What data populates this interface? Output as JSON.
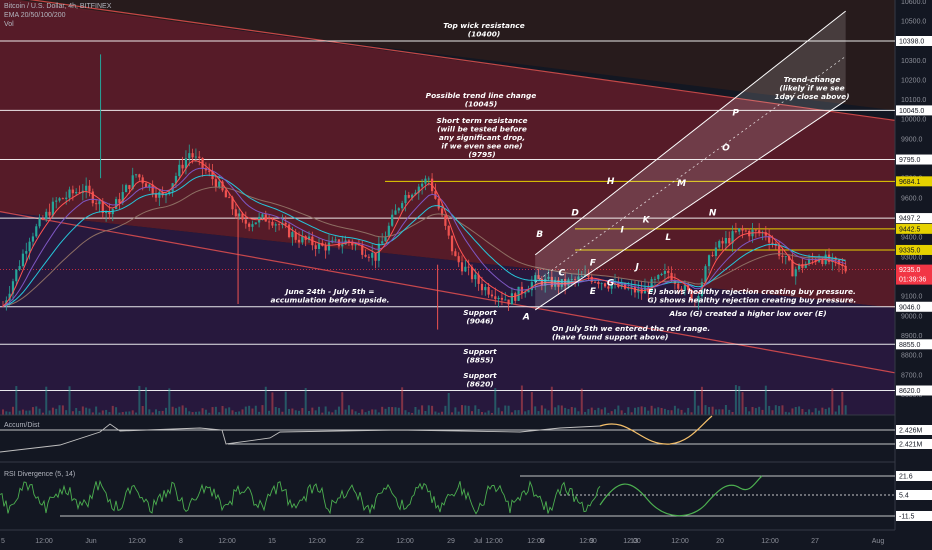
{
  "header": {
    "symbol": "Bitcoin / U.S. Dollar, 4h, BITFINEX",
    "indicators": "EMA 20/50/100/200",
    "volume": "Vol"
  },
  "panes": {
    "accum_title": "Accum/Dist",
    "rsi_title": "RSI Divergence (5, 14)"
  },
  "colors": {
    "background": "#131722",
    "up": "#26a69a",
    "down": "#ef5350",
    "resistance_line": "#ffffff",
    "yellow_line": "#e6d200",
    "red_zone": "#6e1d2b",
    "purple_zone": "#2a1840",
    "ema20": "#ff5252",
    "ema50": "#7e57c2",
    "ema100": "#26c6da",
    "ema200": "#8d6e63",
    "channel": "#ffffff",
    "price_tag": "#f23645"
  },
  "chart_data": {
    "type": "line",
    "title": "Bitcoin / U.S. Dollar, 4h, BITFINEX",
    "xlabel": "",
    "ylabel": "",
    "x_ticks": [
      "5",
      "12:00",
      "Jun",
      "12:00",
      "8",
      "12:00",
      "15",
      "12:00",
      "22",
      "12:00",
      "29",
      "12:00",
      "Jul",
      "12:00",
      "6",
      "12:00",
      "9",
      "12:00",
      "13",
      "12:00",
      "20",
      "12:00",
      "27",
      "Aug"
    ],
    "y_ticks": [
      8600,
      8700,
      8800,
      8900,
      9000,
      9100,
      9200,
      9300,
      9400,
      9500,
      9600,
      9700,
      9800,
      9900,
      10000,
      10100,
      10200,
      10300,
      10400,
      10500,
      10600
    ],
    "ylim": [
      8550,
      10620
    ],
    "series": [
      {
        "name": "Price",
        "x": [
          0,
          3,
          6,
          9,
          12,
          15,
          18,
          21,
          24,
          27,
          30,
          33,
          36,
          39,
          42,
          45,
          48,
          51,
          54,
          57,
          60,
          63,
          66,
          69,
          72,
          75,
          78,
          80,
          83,
          86,
          89,
          92,
          95
        ],
        "values": [
          9050,
          9400,
          9580,
          9650,
          9520,
          9720,
          9600,
          9830,
          9680,
          9470,
          9500,
          9400,
          9350,
          9380,
          9300,
          9600,
          9700,
          9290,
          9150,
          9080,
          9180,
          9160,
          9200,
          9150,
          9120,
          9220,
          9080,
          9330,
          9430,
          9420,
          9230,
          9300,
          9235
        ]
      }
    ],
    "horizontal_levels": [
      {
        "value": 10398.0,
        "label": "10398.0",
        "style": "white"
      },
      {
        "value": 10045.0,
        "label": "10045.0",
        "style": "white"
      },
      {
        "value": 9795.0,
        "label": "9795.0",
        "style": "white"
      },
      {
        "value": 9684.1,
        "label": "9684.1",
        "style": "yellow"
      },
      {
        "value": 9497.2,
        "label": "9497.2",
        "style": "white"
      },
      {
        "value": 9442.5,
        "label": "9442.5",
        "style": "yellow"
      },
      {
        "value": 9335.0,
        "label": "9335.0",
        "style": "yellow"
      },
      {
        "value": 9046.0,
        "label": "9046.0",
        "style": "white"
      },
      {
        "value": 8855.0,
        "label": "8855.0",
        "style": "white"
      },
      {
        "value": 8620.0,
        "label": "8620.0",
        "style": "white"
      }
    ],
    "current_price": {
      "value": 9235.0,
      "label": "9235.0",
      "countdown": "01:39:36"
    },
    "accum_levels": [
      "2.426M",
      "2.421M"
    ],
    "rsi_levels": [
      "21.6",
      "5.4",
      "-11.5"
    ],
    "annotations": {
      "top_wick": "Top wick resistance",
      "top_wick_value": "(10400)",
      "trend_change": "Possible trend line change",
      "trend_change_value": "(10045)",
      "short_term_1": "Short term resistance",
      "short_term_2": "(will be tested before",
      "short_term_3": "any significant drop,",
      "short_term_4": "if we even see one)",
      "short_term_value": "(9795)",
      "trend_change2_1": "Trend-change",
      "trend_change2_2": "(likely if we see",
      "trend_change2_3": "1day close above)",
      "accumulation_1": "June 24th - July 5th =",
      "accumulation_2": "accumulation before upside.",
      "support1": "Support",
      "support1_value": "(9046)",
      "support2": "Support",
      "support2_value": "(8855)",
      "support3": "Support",
      "support3_value": "(8620)",
      "july5_1": "On July 5th we entered the red range.",
      "july5_2": "(have found support above)",
      "rejection_e": "E) shows healthy rejection creating buy pressure.",
      "rejection_g": "G) shows healthy rejection creating buy pressure.",
      "higher_low": "Also (G) created a higher low over (E)"
    },
    "points": [
      "A",
      "B",
      "C",
      "D",
      "E",
      "F",
      "G",
      "H",
      "I",
      "J",
      "K",
      "L",
      "M",
      "N",
      "O",
      "P"
    ]
  }
}
